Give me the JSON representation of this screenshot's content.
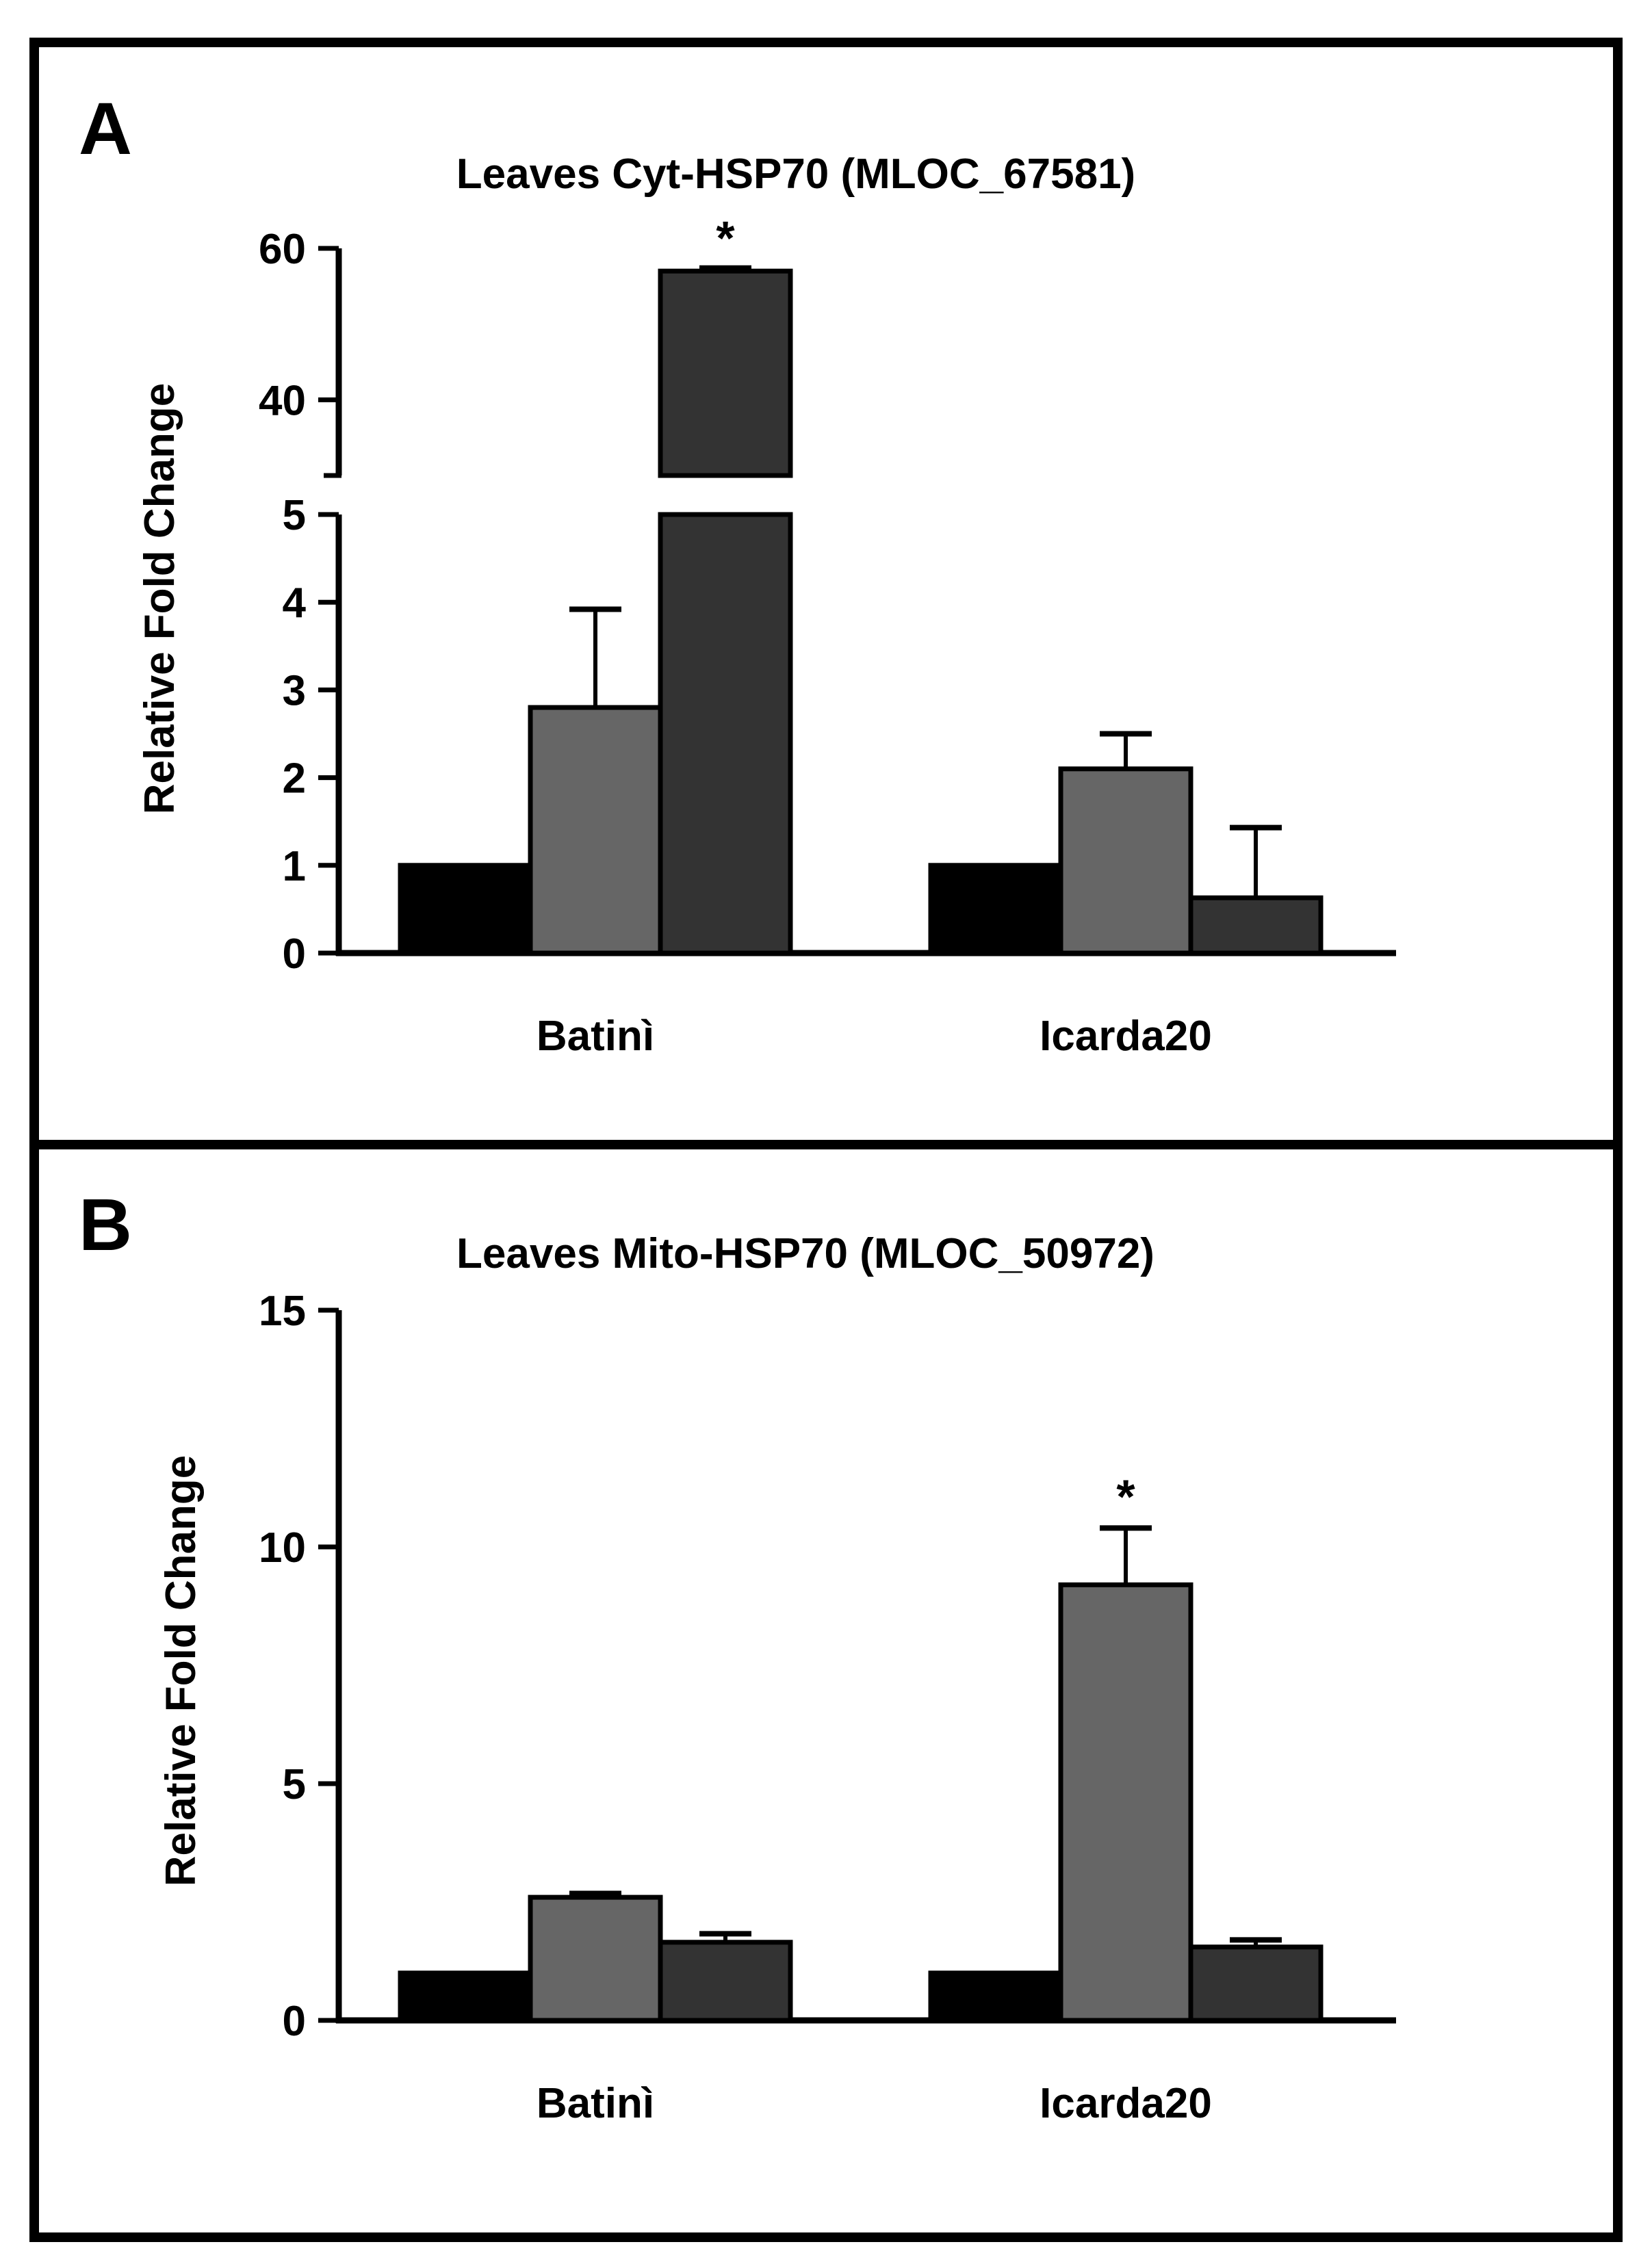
{
  "chart_data": [
    {
      "panel_label": "A",
      "type": "bar",
      "title": "Leaves Cyt-HSP70  (MLOC_67581)",
      "xlabel": "",
      "ylabel": "Relative Fold Change",
      "axis_break": {
        "lower_range": [
          0,
          5
        ],
        "upper_range": [
          30,
          60
        ]
      },
      "lower_ticks": [
        "0",
        "1",
        "2",
        "3",
        "4",
        "5"
      ],
      "upper_ticks": [
        "40",
        "60"
      ],
      "categories": [
        "Batinì",
        "Icarda20"
      ],
      "series": [
        {
          "name": "series-1",
          "color": "#000000",
          "values": [
            1.0,
            1.0
          ],
          "errors": [
            0,
            0
          ]
        },
        {
          "name": "series-2",
          "color": "#666666",
          "values": [
            2.8,
            2.1
          ],
          "errors": [
            1.12,
            0.4
          ]
        },
        {
          "name": "series-3",
          "color": "#333333",
          "values": [
            57.0,
            0.63
          ],
          "errors": [
            0.4,
            0.8
          ]
        }
      ],
      "significance": [
        {
          "category": "Batinì",
          "series": "series-3",
          "mark": "*"
        }
      ]
    },
    {
      "panel_label": "B",
      "type": "bar",
      "title": "Leaves Mito-HSP70  (MLOC_50972)",
      "xlabel": "",
      "ylabel": "Relative Fold Change",
      "ylim": [
        0,
        15
      ],
      "yticks": [
        "0",
        "5",
        "10",
        "15"
      ],
      "categories": [
        "Batinì",
        "Icarda20"
      ],
      "series": [
        {
          "name": "series-1",
          "color": "#000000",
          "values": [
            1.0,
            1.0
          ],
          "errors": [
            0,
            0
          ]
        },
        {
          "name": "series-2",
          "color": "#666666",
          "values": [
            2.6,
            9.2
          ],
          "errors": [
            0.08,
            1.2
          ]
        },
        {
          "name": "series-3",
          "color": "#333333",
          "values": [
            1.65,
            1.55
          ],
          "errors": [
            0.18,
            0.15
          ]
        }
      ],
      "significance": [
        {
          "category": "Icarda20",
          "series": "series-2",
          "mark": "*"
        }
      ]
    }
  ]
}
